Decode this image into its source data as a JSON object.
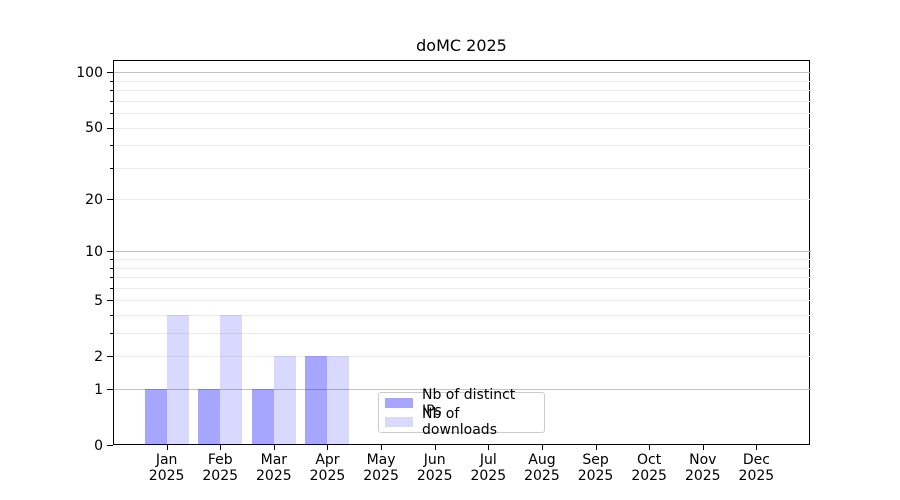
{
  "title": "doMC 2025",
  "legend": {
    "items": [
      {
        "label": "Nb of distinct IPs",
        "color": "rgba(0,0,255,0.35)"
      },
      {
        "label": "Nb of downloads",
        "color": "rgba(0,0,255,0.15)"
      }
    ]
  },
  "chart_data": {
    "type": "bar",
    "title": "doMC 2025",
    "categories": [
      "Jan 2025",
      "Feb 2025",
      "Mar 2025",
      "Apr 2025",
      "May 2025",
      "Jun 2025",
      "Jul 2025",
      "Aug 2025",
      "Sep 2025",
      "Oct 2025",
      "Nov 2025",
      "Dec 2025"
    ],
    "months": [
      "Jan",
      "Feb",
      "Mar",
      "Apr",
      "May",
      "Jun",
      "Jul",
      "Aug",
      "Sep",
      "Oct",
      "Nov",
      "Dec"
    ],
    "year_label": "2025",
    "series": [
      {
        "name": "Nb of distinct IPs",
        "color": "rgba(0,0,255,0.35)",
        "values": [
          1,
          1,
          1,
          2,
          0,
          0,
          0,
          0,
          0,
          0,
          0,
          0
        ]
      },
      {
        "name": "Nb of downloads",
        "color": "rgba(0,0,255,0.15)",
        "values": [
          4,
          4,
          2,
          2,
          0,
          0,
          0,
          0,
          0,
          0,
          0,
          0
        ]
      }
    ],
    "xlabel": "",
    "ylabel": "",
    "y_scale": "log1p",
    "ylim": [
      0,
      116
    ],
    "y_tick_labels": [
      0,
      1,
      2,
      5,
      10,
      20,
      50,
      100
    ],
    "major_gridlines": [
      1,
      10,
      100
    ],
    "minor_gridlines": [
      2,
      3,
      4,
      5,
      6,
      7,
      8,
      9,
      20,
      30,
      40,
      50,
      60,
      70,
      80,
      90
    ],
    "grid": "on",
    "legend_position": "lower center"
  }
}
